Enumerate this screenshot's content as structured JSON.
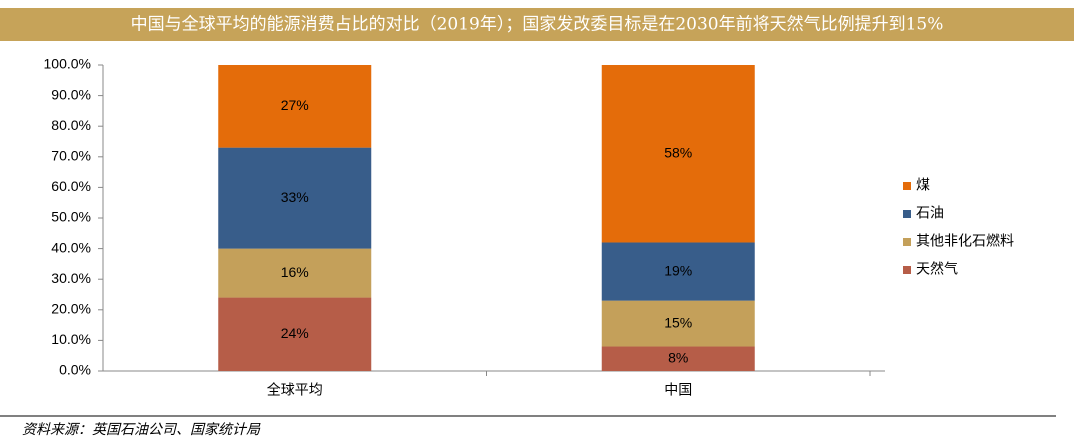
{
  "chart_data": {
    "type": "stacked_bar",
    "title": "中国与全球平均的能源消费占比的对比（2019年）；国家发改委目标是在2030年前将天然气比例提升到15%",
    "categories": [
      "全球平均",
      "中国"
    ],
    "series": [
      {
        "name": "煤",
        "color": "#e46c0a",
        "values": [
          27,
          58
        ],
        "value_labels": [
          "27%",
          "58%"
        ]
      },
      {
        "name": "石油",
        "color": "#385d8a",
        "values": [
          33,
          19
        ],
        "value_labels": [
          "33%",
          "19%"
        ]
      },
      {
        "name": "其他非化石燃料",
        "color": "#c4a05a",
        "values": [
          16,
          15
        ],
        "value_labels": [
          "16%",
          "15%"
        ]
      },
      {
        "name": "天然气",
        "color": "#b65d48",
        "values": [
          24,
          8
        ],
        "value_labels": [
          "24%",
          "8%"
        ]
      }
    ],
    "ylim": [
      0,
      100
    ],
    "yticks": [
      {
        "value": 0,
        "label": "0.0%"
      },
      {
        "value": 10,
        "label": "10.0%"
      },
      {
        "value": 20,
        "label": "20.0%"
      },
      {
        "value": 30,
        "label": "30.0%"
      },
      {
        "value": 40,
        "label": "40.0%"
      },
      {
        "value": 50,
        "label": "50.0%"
      },
      {
        "value": 60,
        "label": "60.0%"
      },
      {
        "value": 70,
        "label": "70.0%"
      },
      {
        "value": 80,
        "label": "80.0%"
      },
      {
        "value": 90,
        "label": "90.0%"
      },
      {
        "value": 100,
        "label": "100.0%"
      }
    ],
    "legend": "right",
    "source": "资料来源：英国石油公司、国家统计局"
  }
}
